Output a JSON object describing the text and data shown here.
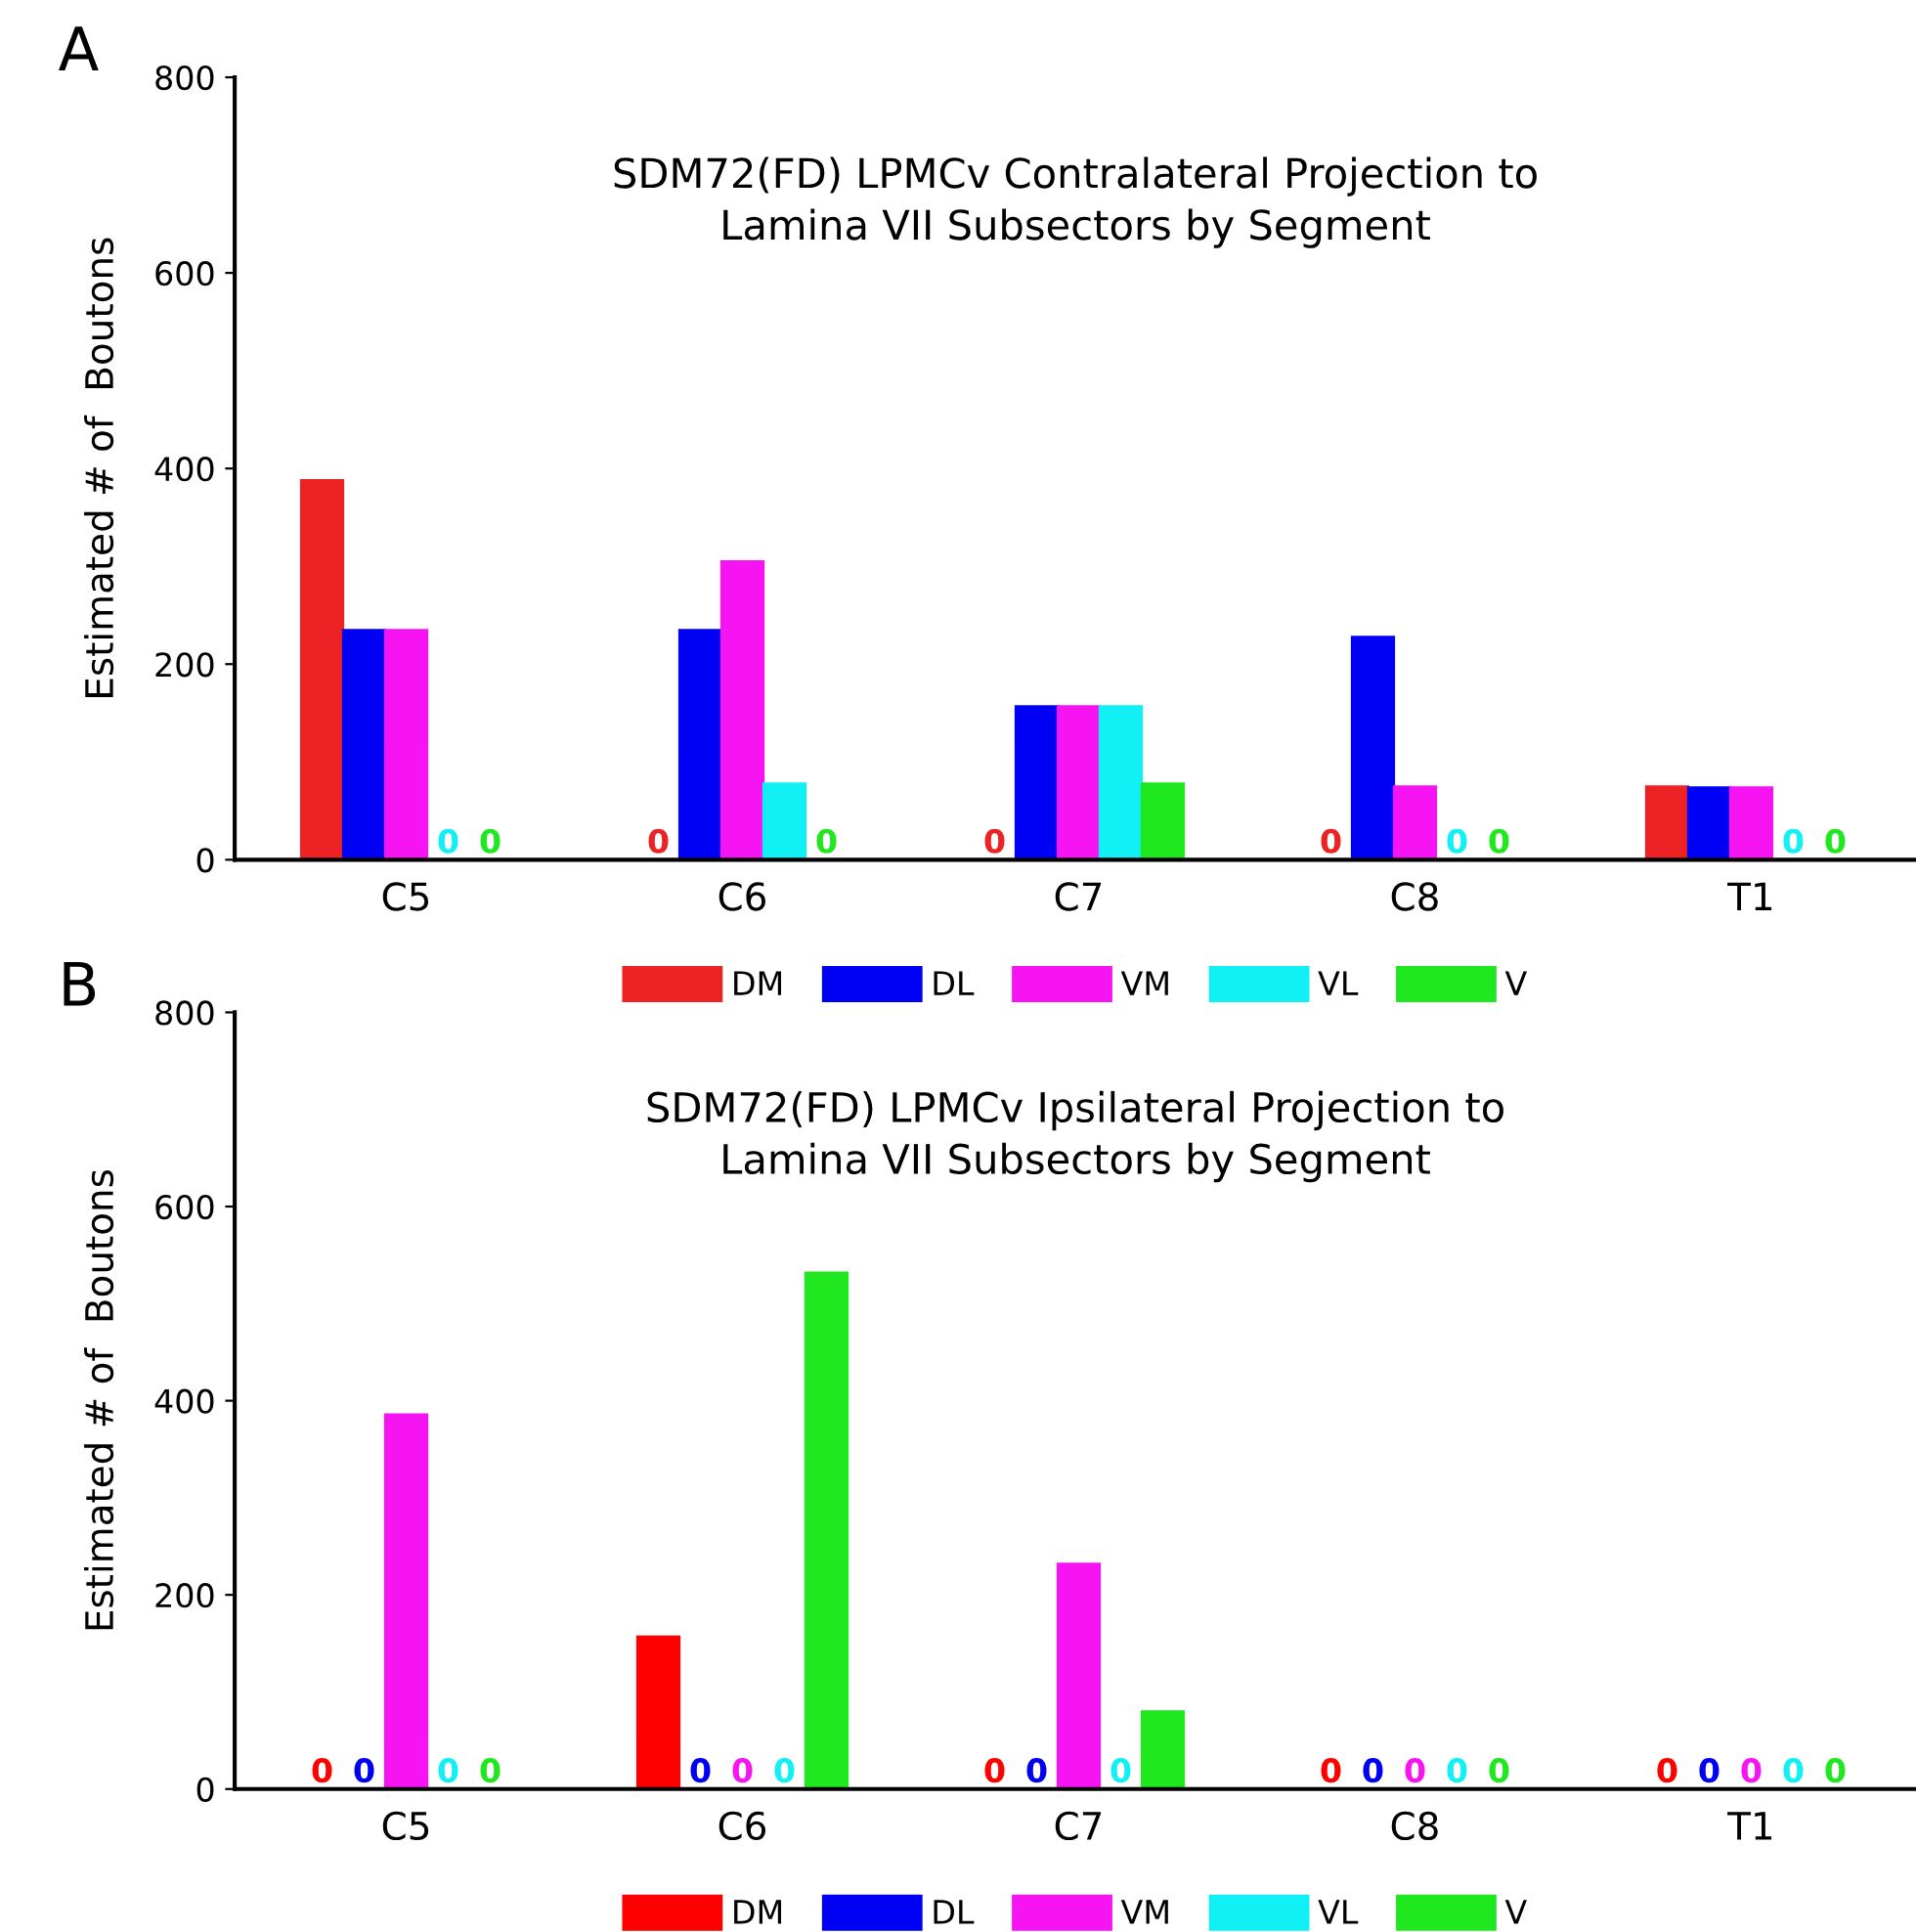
{
  "chart_data": [
    {
      "type": "bar",
      "title": "SDM72(FD) LPMCv Contralateral Projection to\nLamina VII Subsectors by Segment",
      "ylabel": "Estimated # of  Boutons",
      "annotations": [
        "A"
      ],
      "categories": [
        "C5",
        "C6",
        "C7",
        "C8",
        "T1"
      ],
      "ylim": [
        0,
        800
      ],
      "yticks": [
        0,
        200,
        400,
        600,
        800
      ],
      "grid": false,
      "legend": "bottom",
      "series": [
        {
          "name": "DM",
          "color": "#ed2224",
          "values": [
            388,
            0,
            0,
            0,
            75
          ],
          "value_labels": [
            null,
            "0",
            "0",
            "0",
            null
          ]
        },
        {
          "name": "DL",
          "color": "#0000f5",
          "values": [
            235,
            235,
            157,
            228,
            74
          ],
          "value_labels": [
            null,
            null,
            null,
            null,
            null
          ]
        },
        {
          "name": "VM",
          "color": "#f614f2",
          "values": [
            235,
            305,
            157,
            75,
            74
          ],
          "value_labels": [
            null,
            null,
            null,
            null,
            null
          ]
        },
        {
          "name": "VL",
          "color": "#10f0f5",
          "values": [
            0,
            78,
            157,
            0,
            0
          ],
          "value_labels": [
            "0",
            null,
            null,
            "0",
            "0"
          ]
        },
        {
          "name": "V",
          "color": "#1fe81f",
          "values": [
            0,
            0,
            78,
            0,
            0
          ],
          "value_labels": [
            "0",
            "0",
            null,
            "0",
            "0"
          ]
        }
      ]
    },
    {
      "type": "bar",
      "title": "SDM72(FD) LPMCv Ipsilateral Projection to\nLamina VII Subsectors by Segment",
      "ylabel": "Estimated # of  Boutons",
      "annotations": [
        "B"
      ],
      "categories": [
        "C5",
        "C6",
        "C7",
        "C8",
        "T1"
      ],
      "ylim": [
        0,
        800
      ],
      "yticks": [
        0,
        200,
        400,
        600,
        800
      ],
      "grid": false,
      "legend": "bottom",
      "series": [
        {
          "name": "DM",
          "color": "#ff0000",
          "values": [
            0,
            157,
            0,
            0,
            0
          ],
          "value_labels": [
            "0",
            null,
            "0",
            "0",
            "0"
          ]
        },
        {
          "name": "DL",
          "color": "#0000f5",
          "values": [
            0,
            0,
            0,
            0,
            0
          ],
          "value_labels": [
            "0",
            "0",
            "0",
            "0",
            "0"
          ]
        },
        {
          "name": "VM",
          "color": "#f614f2",
          "values": [
            386,
            0,
            232,
            0,
            0
          ],
          "value_labels": [
            null,
            "0",
            null,
            "0",
            "0"
          ]
        },
        {
          "name": "VL",
          "color": "#10f0f5",
          "values": [
            0,
            0,
            0,
            0,
            0
          ],
          "value_labels": [
            "0",
            "0",
            "0",
            "0",
            "0"
          ]
        },
        {
          "name": "V",
          "color": "#1fe81f",
          "values": [
            0,
            532,
            80,
            0,
            0
          ],
          "value_labels": [
            "0",
            null,
            null,
            "0",
            "0"
          ]
        }
      ]
    }
  ]
}
